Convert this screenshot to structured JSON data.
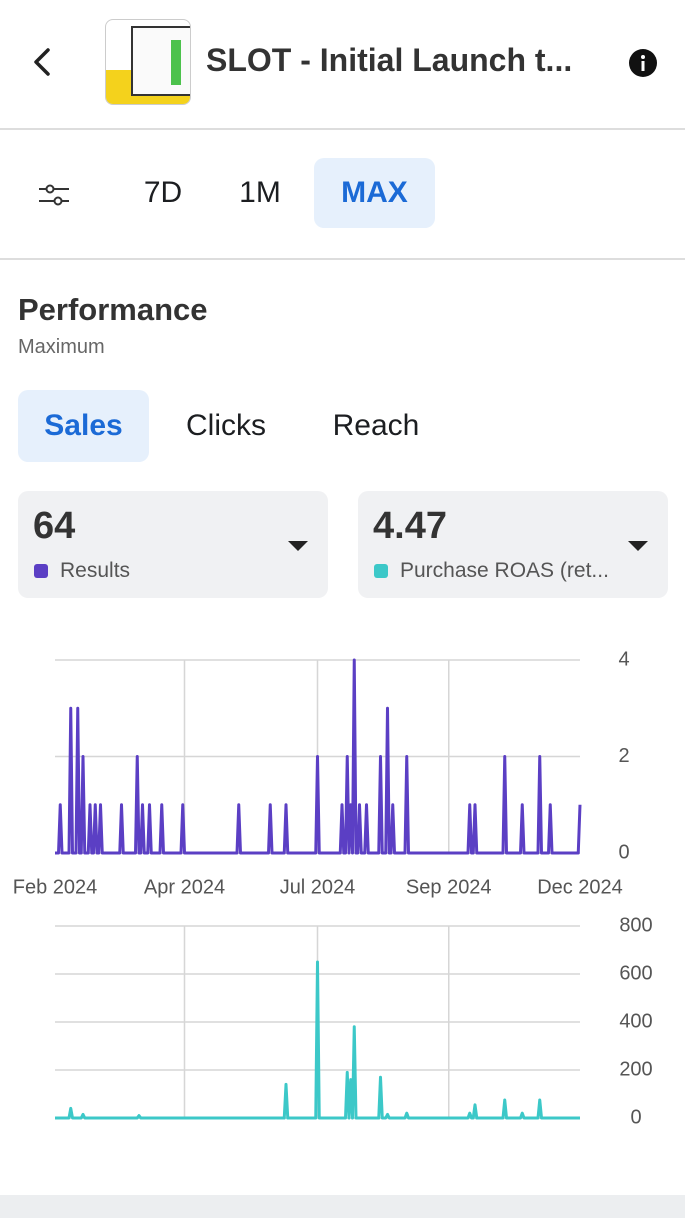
{
  "header": {
    "title": "SLOT - Initial Launch t..."
  },
  "tabs": [
    "7D",
    "1M",
    "MAX"
  ],
  "section": {
    "title": "Performance",
    "subtitle": "Maximum"
  },
  "metric_tabs": [
    "Sales",
    "Clicks",
    "Reach"
  ],
  "cards": [
    {
      "value": 64,
      "label": "Results",
      "color": "#5b3fc4"
    },
    {
      "value": 4.47,
      "label": "Purchase ROAS (ret...",
      "color": "#3cc8c8"
    }
  ],
  "chart_data": [
    {
      "type": "line",
      "color": "#5b3fc4",
      "ylim": [
        0,
        4
      ],
      "yticks": [
        0,
        2,
        4
      ],
      "xlim": [
        0,
        300
      ],
      "grid": true,
      "xticks": [
        {
          "value": 0,
          "label": "Feb 2024"
        },
        {
          "value": 74,
          "label": "Apr 2024"
        },
        {
          "value": 150,
          "label": "Jul 2024"
        },
        {
          "value": 225,
          "label": "Sep 2024"
        },
        {
          "value": 300,
          "label": "Dec 2024"
        }
      ],
      "x": [
        0,
        2,
        3,
        4,
        8,
        9,
        10,
        12,
        13,
        14,
        15,
        16,
        17,
        19,
        20,
        21,
        22,
        23,
        24,
        25,
        26,
        27,
        37,
        38,
        39,
        46,
        47,
        48,
        49,
        50,
        51,
        53,
        54,
        55,
        60,
        61,
        62,
        72,
        73,
        74,
        104,
        105,
        106,
        122,
        123,
        124,
        131,
        132,
        133,
        149,
        150,
        151,
        163,
        164,
        165,
        166,
        167,
        168,
        169,
        170,
        171,
        172,
        173,
        174,
        175,
        177,
        178,
        179,
        185,
        186,
        187,
        189,
        190,
        191,
        192,
        193,
        194,
        200,
        201,
        202,
        236,
        237,
        238,
        239,
        240,
        241,
        256,
        257,
        258,
        266,
        267,
        268,
        276,
        277,
        278,
        282,
        283,
        284,
        299,
        300
      ],
      "values": [
        0,
        0,
        1,
        0,
        0,
        3,
        0,
        0,
        3,
        0,
        0,
        2,
        0,
        0,
        1,
        0,
        0,
        1,
        0,
        0,
        1,
        0,
        0,
        1,
        0,
        0,
        2,
        0,
        0,
        1,
        0,
        0,
        1,
        0,
        0,
        1,
        0,
        0,
        1,
        0,
        0,
        1,
        0,
        0,
        1,
        0,
        0,
        1,
        0,
        0,
        2,
        0,
        0,
        1,
        0,
        0,
        2,
        0,
        1,
        0,
        4,
        0,
        0,
        1,
        0,
        0,
        1,
        0,
        0,
        2,
        0,
        0,
        3,
        0,
        0,
        1,
        0,
        0,
        2,
        0,
        0,
        1,
        0,
        0,
        1,
        0,
        0,
        2,
        0,
        0,
        1,
        0,
        0,
        2,
        0,
        0,
        1,
        0,
        0,
        1
      ]
    },
    {
      "type": "line",
      "color": "#3cc8c8",
      "ylim": [
        0,
        800
      ],
      "yticks": [
        0,
        200,
        400,
        600,
        800
      ],
      "xlim": [
        0,
        300
      ],
      "grid": true,
      "x": [
        0,
        8,
        9,
        10,
        15,
        16,
        17,
        47,
        48,
        49,
        131,
        132,
        133,
        149,
        150,
        151,
        166,
        167,
        168,
        169,
        170,
        171,
        172,
        185,
        186,
        187,
        189,
        190,
        191,
        200,
        201,
        202,
        236,
        237,
        238,
        239,
        240,
        241,
        256,
        257,
        258,
        266,
        267,
        268,
        276,
        277,
        278,
        300
      ],
      "values": [
        0,
        0,
        40,
        0,
        0,
        15,
        0,
        0,
        10,
        0,
        0,
        140,
        0,
        0,
        650,
        0,
        0,
        190,
        0,
        160,
        0,
        380,
        0,
        0,
        170,
        0,
        0,
        15,
        0,
        0,
        20,
        0,
        0,
        20,
        0,
        0,
        55,
        0,
        0,
        75,
        0,
        0,
        20,
        0,
        0,
        75,
        0,
        0
      ]
    }
  ]
}
